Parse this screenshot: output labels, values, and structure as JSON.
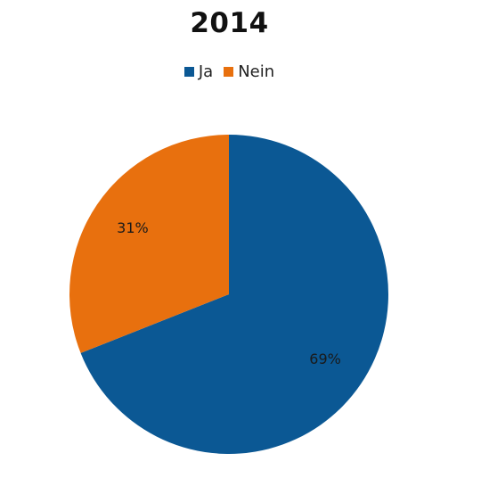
{
  "chart_data": {
    "type": "pie",
    "title": "2014",
    "legend_position": "top",
    "series": [
      {
        "name": "Ja",
        "value": 69,
        "label": "69%",
        "color": "#0b5894"
      },
      {
        "name": "Nein",
        "value": 31,
        "label": "31%",
        "color": "#e8700e"
      }
    ]
  }
}
